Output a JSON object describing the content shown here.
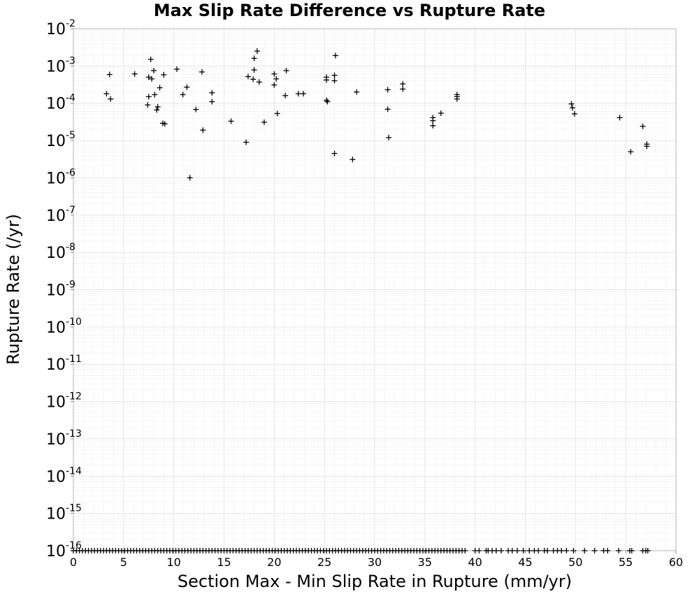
{
  "chart_data": {
    "type": "scatter",
    "title": "Max Slip Rate Difference vs Rupture Rate",
    "xlabel": "Section Max - Min Slip Rate in Rupture (mm/yr)",
    "ylabel": "Rupture Rate (/yr)",
    "xlim": [
      0,
      60
    ],
    "ylim": [
      1e-16,
      0.01
    ],
    "y_scale": "log",
    "grid": true,
    "marker": "plus",
    "x_ticks": [
      "0",
      "5",
      "10",
      "15",
      "20",
      "25",
      "30",
      "35",
      "40",
      "45",
      "50",
      "55",
      "60"
    ],
    "y_ticks": [
      {
        "base": "10",
        "exp": "-2"
      },
      {
        "base": "10",
        "exp": "-3"
      },
      {
        "base": "10",
        "exp": "-4"
      },
      {
        "base": "10",
        "exp": "-5"
      },
      {
        "base": "10",
        "exp": "-6"
      },
      {
        "base": "10",
        "exp": "-7"
      },
      {
        "base": "10",
        "exp": "-8"
      },
      {
        "base": "10",
        "exp": "-9"
      },
      {
        "base": "10",
        "exp": "-10"
      },
      {
        "base": "10",
        "exp": "-11"
      },
      {
        "base": "10",
        "exp": "-12"
      },
      {
        "base": "10",
        "exp": "-13"
      },
      {
        "base": "10",
        "exp": "-14"
      },
      {
        "base": "10",
        "exp": "-15"
      },
      {
        "base": "10",
        "exp": "-16"
      }
    ],
    "points": [
      [
        3.3,
        0.00018
      ],
      [
        3.6,
        0.00059
      ],
      [
        3.7,
        0.00013
      ],
      [
        6.1,
        0.00061
      ],
      [
        7.4,
        9e-05
      ],
      [
        7.5,
        0.00015
      ],
      [
        7.5,
        0.0005
      ],
      [
        7.7,
        0.0015
      ],
      [
        7.8,
        0.00045
      ],
      [
        8.0,
        0.00075
      ],
      [
        8.1,
        0.00017
      ],
      [
        8.3,
        6.6e-05
      ],
      [
        8.4,
        8e-05
      ],
      [
        8.6,
        0.00026
      ],
      [
        8.9,
        2.9e-05
      ],
      [
        9.0,
        0.00058
      ],
      [
        9.1,
        2.8e-05
      ],
      [
        10.3,
        0.00082
      ],
      [
        10.9,
        0.00017
      ],
      [
        11.3,
        0.00027
      ],
      [
        11.6,
        1e-06
      ],
      [
        12.2,
        6.8e-05
      ],
      [
        12.8,
        0.00069
      ],
      [
        12.9,
        1.9e-05
      ],
      [
        13.8,
        0.00011
      ],
      [
        13.8,
        0.00019
      ],
      [
        15.7,
        3.3e-05
      ],
      [
        17.2,
        9e-06
      ],
      [
        17.4,
        0.00052
      ],
      [
        17.9,
        0.00044
      ],
      [
        18.0,
        0.0016
      ],
      [
        18.0,
        0.00078
      ],
      [
        18.3,
        0.0025
      ],
      [
        18.5,
        0.00037
      ],
      [
        19.0,
        3.1e-05
      ],
      [
        20.0,
        0.00061
      ],
      [
        20.0,
        0.00031
      ],
      [
        20.2,
        0.00045
      ],
      [
        20.3,
        5.3e-05
      ],
      [
        21.1,
        0.00016
      ],
      [
        21.2,
        0.00075
      ],
      [
        22.4,
        0.00018
      ],
      [
        22.9,
        0.00018
      ],
      [
        25.2,
        0.0005
      ],
      [
        25.2,
        0.00012
      ],
      [
        25.2,
        0.00042
      ],
      [
        25.3,
        0.00011
      ],
      [
        26.0,
        4.5e-06
      ],
      [
        26.0,
        0.00056
      ],
      [
        26.0,
        0.0004
      ],
      [
        26.1,
        0.0019
      ],
      [
        27.8,
        3.1e-06
      ],
      [
        28.2,
        0.0002
      ],
      [
        31.3,
        0.00023
      ],
      [
        31.3,
        6.9e-05
      ],
      [
        31.4,
        1.2e-05
      ],
      [
        32.8,
        0.00033
      ],
      [
        32.8,
        0.00024
      ],
      [
        35.8,
        4.1e-05
      ],
      [
        35.8,
        3.4e-05
      ],
      [
        35.8,
        2.5e-05
      ],
      [
        36.6,
        5.4e-05
      ],
      [
        38.2,
        0.00017
      ],
      [
        38.2,
        0.00015
      ],
      [
        38.2,
        0.00013
      ],
      [
        49.6,
        9.6e-05
      ],
      [
        49.7,
        7.5e-05
      ],
      [
        49.9,
        5.2e-05
      ],
      [
        54.4,
        4.1e-05
      ],
      [
        55.5,
        5e-06
      ],
      [
        56.7,
        2.4e-05
      ],
      [
        57.1,
        8e-06
      ],
      [
        57.1,
        7e-06
      ]
    ],
    "floor_points_y": 1e-16,
    "floor_points_x": [
      0.0,
      0.3,
      0.6,
      0.9,
      1.2,
      1.5,
      1.8,
      2.1,
      2.4,
      2.7,
      3.0,
      3.3,
      3.6,
      3.9,
      4.2,
      4.5,
      4.8,
      5.1,
      5.4,
      5.7,
      6.0,
      6.3,
      6.6,
      6.9,
      7.2,
      7.5,
      7.8,
      8.1,
      8.4,
      8.7,
      9.0,
      9.3,
      9.6,
      9.9,
      10.2,
      10.5,
      10.8,
      11.1,
      11.4,
      11.7,
      12.0,
      12.3,
      12.6,
      12.9,
      13.2,
      13.5,
      13.8,
      14.1,
      14.4,
      14.7,
      15.0,
      15.3,
      15.6,
      15.9,
      16.2,
      16.5,
      16.8,
      17.1,
      17.4,
      17.7,
      18.0,
      18.3,
      18.6,
      18.9,
      19.2,
      19.5,
      19.8,
      20.1,
      20.4,
      20.7,
      21.0,
      21.3,
      21.6,
      21.9,
      22.2,
      22.5,
      22.8,
      23.1,
      23.4,
      23.7,
      24.0,
      24.3,
      24.6,
      24.9,
      25.2,
      25.5,
      25.8,
      26.1,
      26.4,
      26.7,
      27.0,
      27.3,
      27.6,
      27.9,
      28.2,
      28.5,
      28.8,
      29.1,
      29.4,
      29.7,
      30.0,
      30.3,
      30.6,
      30.9,
      31.2,
      31.5,
      31.8,
      32.1,
      32.4,
      32.7,
      33.0,
      33.3,
      33.6,
      33.9,
      34.2,
      34.5,
      34.8,
      35.1,
      35.4,
      35.7,
      36.0,
      36.3,
      36.6,
      36.9,
      37.2,
      37.5,
      37.8,
      38.1,
      38.4,
      38.7,
      39.0,
      40.0,
      40.4,
      41.1,
      41.3,
      41.7,
      42.1,
      42.6,
      43.3,
      43.7,
      44.2,
      44.8,
      45.4,
      45.9,
      46.3,
      46.9,
      47.2,
      47.8,
      48.2,
      48.6,
      49.1,
      49.8,
      50.9,
      51.9,
      52.8,
      53.2,
      54.3,
      55.4,
      55.6,
      56.7,
      57.0,
      57.2
    ]
  }
}
